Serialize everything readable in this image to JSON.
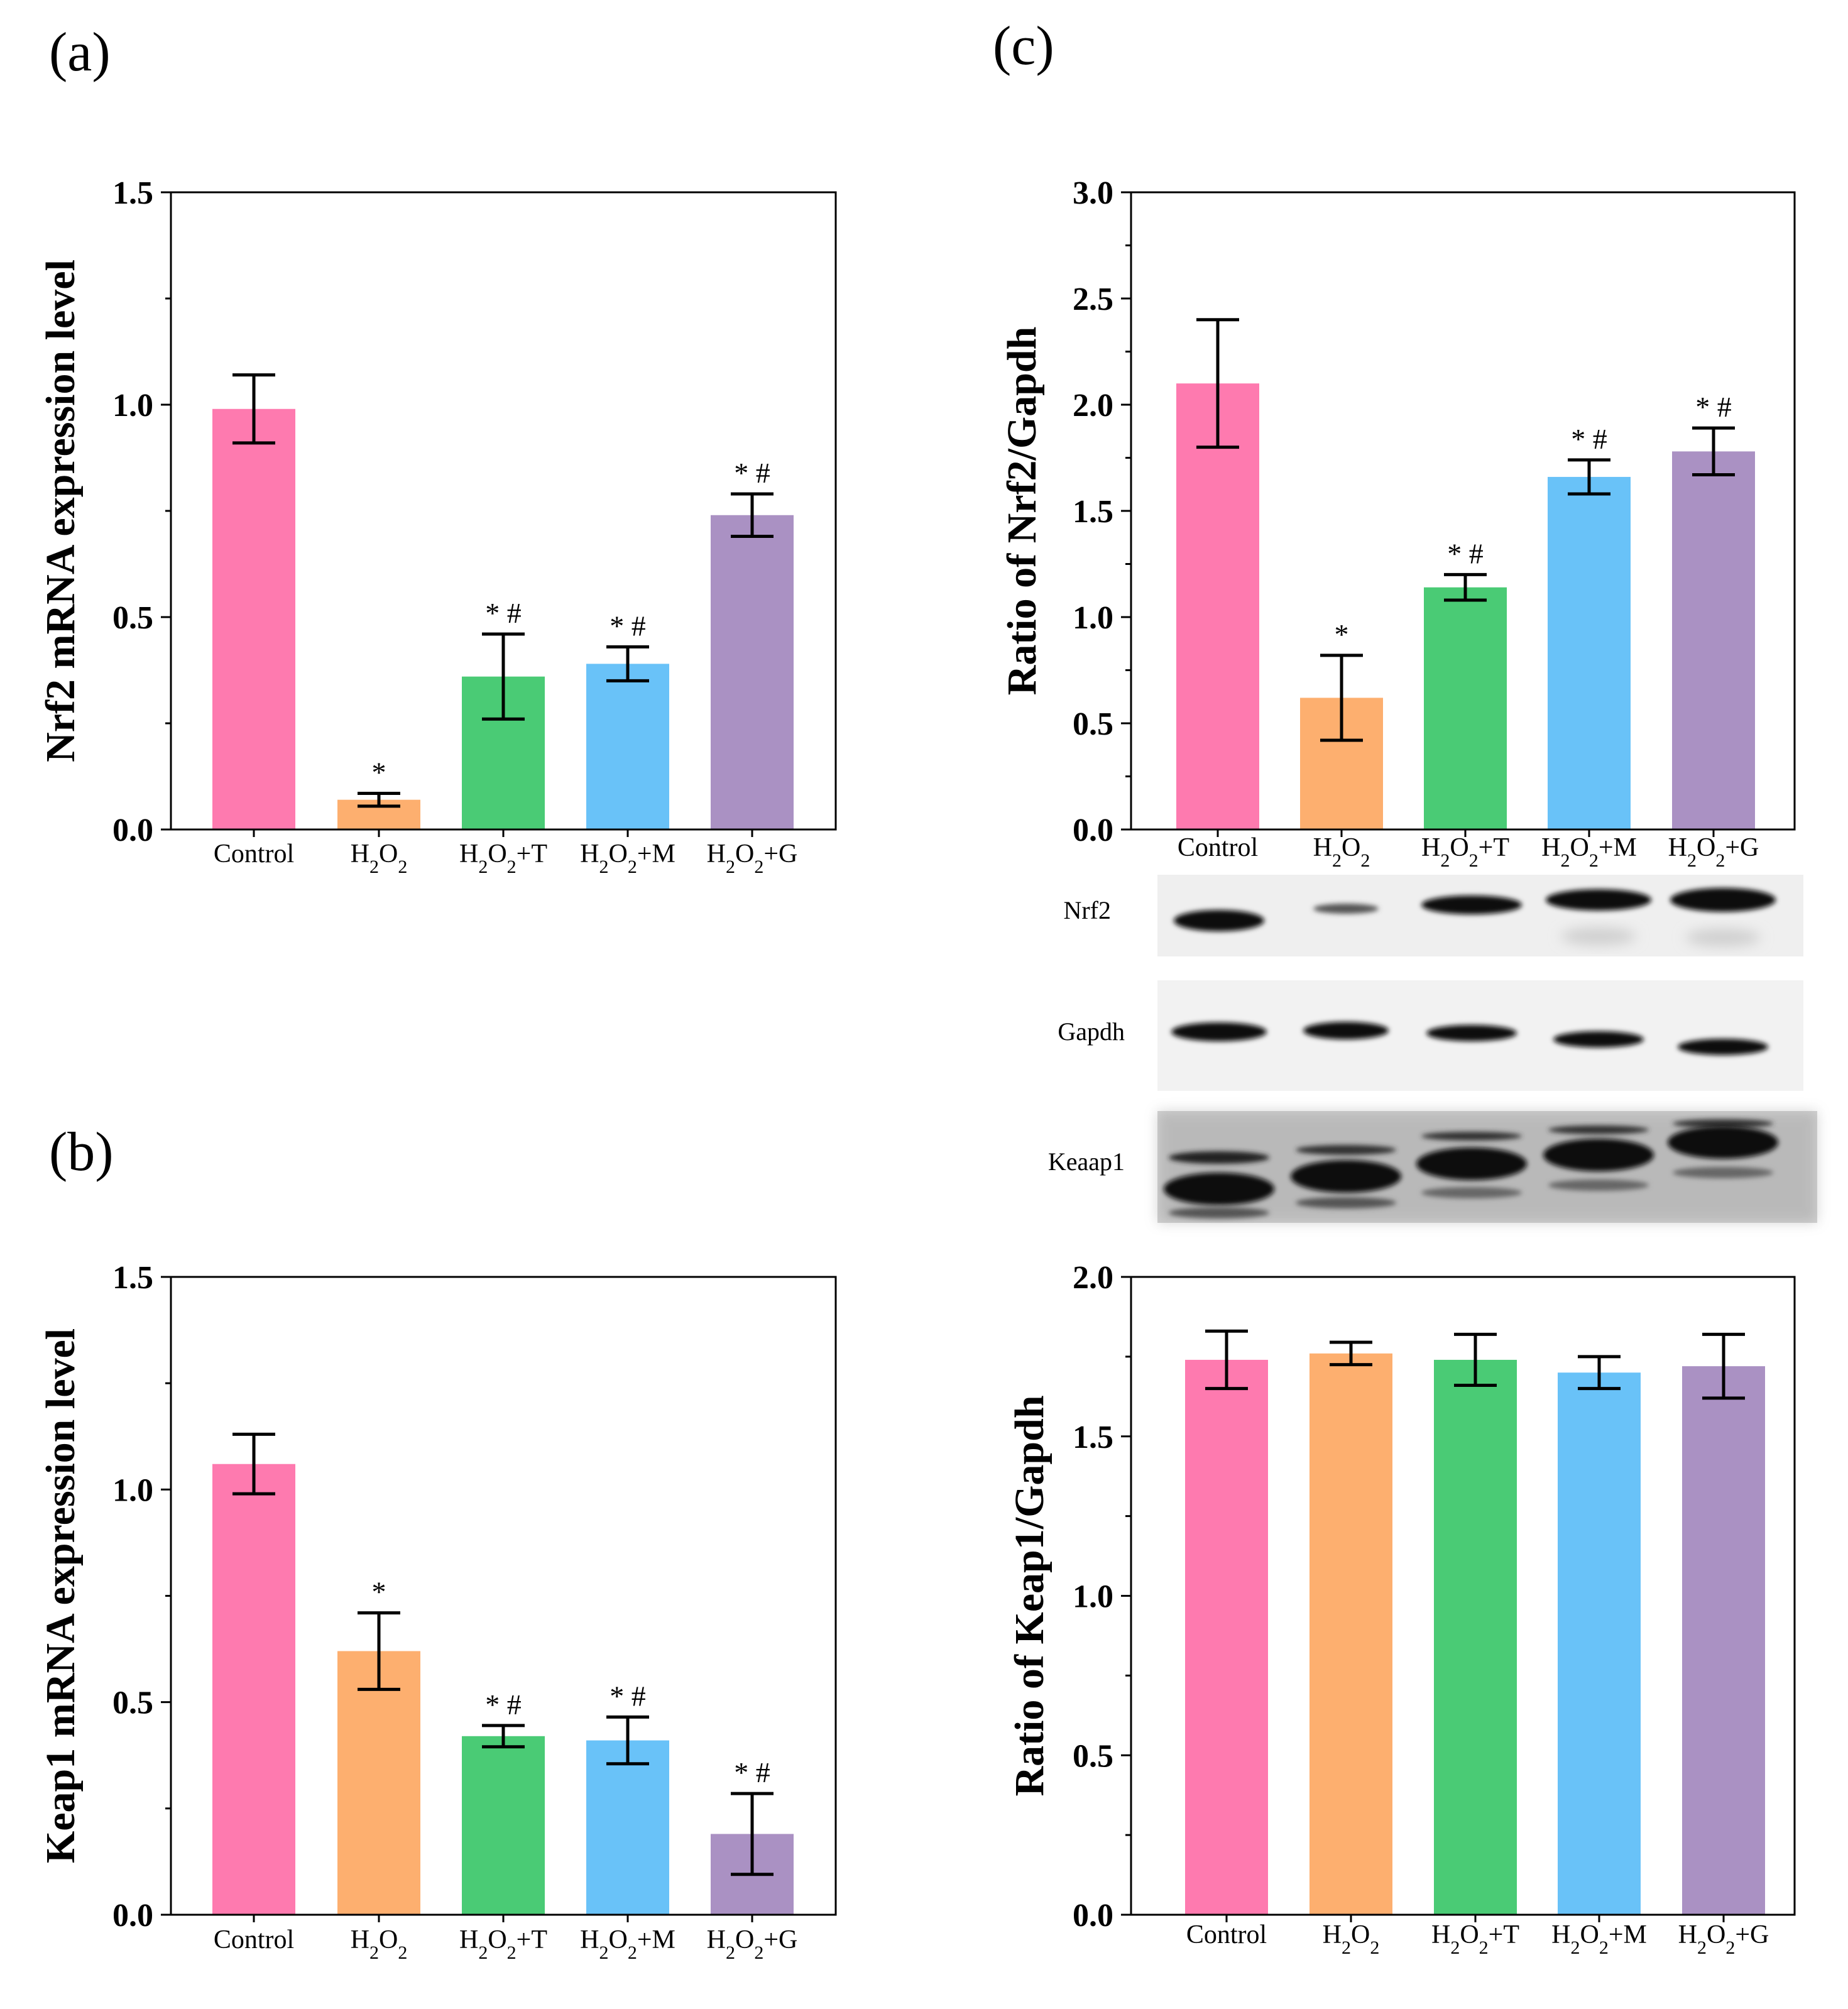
{
  "panel_labels": {
    "a": "(a)",
    "b": "(b)",
    "c": "(c)"
  },
  "colors": {
    "Control": "#FE7AAF",
    "H2O2": "#FDAF6F",
    "H2O2+T": "#4ACB75",
    "H2O2+M": "#69C2F8",
    "H2O2+G": "#AA91C3",
    "axis": "#000000",
    "errorbar": "#000000"
  },
  "blot": {
    "labels": [
      "Nrf2",
      "Gapdh",
      "Keaap1"
    ]
  },
  "chart_data": [
    {
      "id": "a",
      "type": "bar",
      "ylabel": "Nrf2 mRNA expression level",
      "ylim": [
        0,
        1.5
      ],
      "yticks": [
        "0.0",
        "0.5",
        "1.0",
        "1.5"
      ],
      "categories": [
        "Control",
        "H₂O₂",
        "H₂O₂+T",
        "H₂O₂+M",
        "H₂O₂+G"
      ],
      "values": [
        0.99,
        0.07,
        0.36,
        0.39,
        0.74
      ],
      "errors": [
        0.08,
        0.015,
        0.1,
        0.04,
        0.05
      ],
      "annotations": [
        "",
        "*",
        "* #",
        "* #",
        "* #"
      ]
    },
    {
      "id": "b",
      "type": "bar",
      "ylabel": "Keap1 mRNA expression level",
      "ylim": [
        0,
        1.5
      ],
      "yticks": [
        "0.0",
        "0.5",
        "1.0",
        "1.5"
      ],
      "categories": [
        "Control",
        "H₂O₂",
        "H₂O₂+T",
        "H₂O₂+M",
        "H₂O₂+G"
      ],
      "values": [
        1.06,
        0.62,
        0.42,
        0.41,
        0.19
      ],
      "errors": [
        0.07,
        0.09,
        0.025,
        0.055,
        0.095
      ],
      "annotations": [
        "",
        "*",
        "* #",
        "* #",
        "* #"
      ]
    },
    {
      "id": "c-top",
      "type": "bar",
      "ylabel": "Ratio of Nrf2/Gapdh",
      "ylim": [
        0,
        3.0
      ],
      "yticks": [
        "0.0",
        "0.5",
        "1.0",
        "1.5",
        "2.0",
        "2.5",
        "3.0"
      ],
      "categories": [
        "Control",
        "H₂O₂",
        "H₂O₂+T",
        "H₂O₂+M",
        "H₂O₂+G"
      ],
      "values": [
        2.1,
        0.62,
        1.14,
        1.66,
        1.78
      ],
      "errors": [
        0.3,
        0.2,
        0.06,
        0.08,
        0.11
      ],
      "annotations": [
        "",
        "*",
        "* #",
        "* #",
        "* #"
      ]
    },
    {
      "id": "c-bottom",
      "type": "bar",
      "ylabel": "Ratio of Keap1/Gapdh",
      "ylim": [
        0,
        2.0
      ],
      "yticks": [
        "0.0",
        "0.5",
        "1.0",
        "1.5",
        "2.0"
      ],
      "categories": [
        "Control",
        "H₂O₂",
        "H₂O₂+T",
        "H₂O₂+M",
        "H₂O₂+G"
      ],
      "values": [
        1.74,
        1.76,
        1.74,
        1.7,
        1.72
      ],
      "errors": [
        0.09,
        0.035,
        0.08,
        0.05,
        0.1
      ],
      "annotations": [
        "",
        "",
        "",
        "",
        ""
      ]
    }
  ]
}
